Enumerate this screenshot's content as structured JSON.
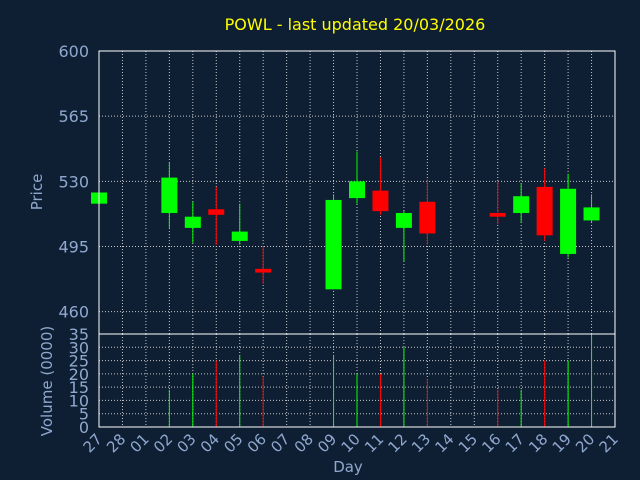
{
  "colors": {
    "background": "#0f1f33",
    "title": "#ffff00",
    "axis_text": "#8fa8cf",
    "grid": "#c8c8c8",
    "up": "#00ff00",
    "down": "#ff0000",
    "frame": "#ffffff"
  },
  "chart_data": {
    "type": "candlestick",
    "title": "POWL - last updated 20/03/2026",
    "price_panel": {
      "ylabel": "Price",
      "ylim": [
        448,
        600
      ],
      "yticks": [
        600,
        565,
        530,
        495,
        460
      ],
      "grid": true
    },
    "volume_panel": {
      "ylabel": "Volume (0000)",
      "ylim": [
        0,
        35
      ],
      "yticks": [
        35,
        30,
        25,
        20,
        15,
        10,
        5,
        0
      ],
      "grid": true
    },
    "xlabel": "Day",
    "x_ticks": [
      "27",
      "28",
      "01",
      "02",
      "03",
      "04",
      "05",
      "06",
      "07",
      "08",
      "09",
      "10",
      "11",
      "12",
      "13",
      "14",
      "15",
      "16",
      "17",
      "18",
      "19",
      "20",
      "21"
    ],
    "candles": [
      {
        "day": "27",
        "open": 518,
        "close": 524,
        "high": 524,
        "low": 518,
        "volume": 0
      },
      {
        "day": "02",
        "open": 513,
        "close": 532,
        "high": 540,
        "low": 505,
        "volume": 14
      },
      {
        "day": "03",
        "open": 505,
        "close": 511,
        "high": 519,
        "low": 497,
        "volume": 20
      },
      {
        "day": "04",
        "open": 515,
        "close": 512,
        "high": 527,
        "low": 496,
        "volume": 25
      },
      {
        "day": "05",
        "open": 498,
        "close": 503,
        "high": 518,
        "low": 496,
        "volume": 27
      },
      {
        "day": "06",
        "open": 483,
        "close": 481,
        "high": 495,
        "low": 475,
        "volume": 19
      },
      {
        "day": "09",
        "open": 472,
        "close": 520,
        "high": 523,
        "low": 472,
        "volume": 27
      },
      {
        "day": "10",
        "open": 521,
        "close": 530,
        "high": 546,
        "low": 518,
        "volume": 20
      },
      {
        "day": "11",
        "open": 525,
        "close": 514,
        "high": 543,
        "low": 512,
        "volume": 20
      },
      {
        "day": "12",
        "open": 505,
        "close": 513,
        "high": 514,
        "low": 487,
        "volume": 30
      },
      {
        "day": "13",
        "open": 519,
        "close": 502,
        "high": 531,
        "low": 496,
        "volume": 18
      },
      {
        "day": "16",
        "open": 513,
        "close": 511,
        "high": 530,
        "low": 507,
        "volume": 14
      },
      {
        "day": "17",
        "open": 513,
        "close": 522,
        "high": 529,
        "low": 508,
        "volume": 14
      },
      {
        "day": "18",
        "open": 527,
        "close": 501,
        "high": 537,
        "low": 498,
        "volume": 25
      },
      {
        "day": "19",
        "open": 491,
        "close": 526,
        "high": 534,
        "low": 489,
        "volume": 25
      },
      {
        "day": "20",
        "open": 509,
        "close": 516,
        "high": 523,
        "low": 508,
        "volume": 35
      }
    ]
  }
}
